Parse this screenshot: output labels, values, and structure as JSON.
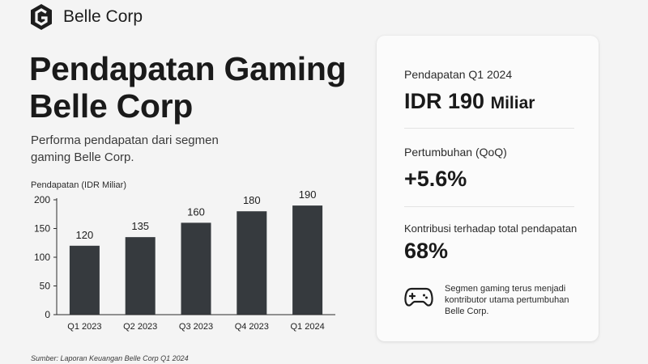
{
  "brand": {
    "name": "Belle Corp",
    "logo_icon": "belle-corp-logo-icon"
  },
  "title_lines": [
    "Pendapatan Gaming",
    "Belle Corp"
  ],
  "subtitle": "Performa pendapatan dari segmen gaming Belle Corp.",
  "source": "Sumber: Laporan Keuangan Belle Corp Q1 2024",
  "chart_data": {
    "type": "bar",
    "title": "",
    "xlabel": "",
    "ylabel": "Pendapatan (IDR Miliar)",
    "categories": [
      "Q1 2023",
      "Q2 2023",
      "Q3 2023",
      "Q4 2023",
      "Q1 2024"
    ],
    "values": [
      120,
      135,
      160,
      180,
      190
    ],
    "ylim": [
      0,
      200
    ],
    "yticks": [
      0,
      50,
      100,
      150,
      200
    ],
    "grid": false,
    "data_labels": true,
    "bar_color": "#363a3e"
  },
  "kpis": [
    {
      "label": "Pendapatan Q1 2024",
      "value": "IDR 190",
      "unit": "Miliar"
    },
    {
      "label": "Pertumbuhan (QoQ)",
      "value": "+5.6%"
    },
    {
      "label": "Kontribusi terhadap total pendapatan",
      "value": "68%"
    }
  ],
  "note": {
    "icon": "gamepad-icon",
    "text": "Segmen gaming terus menjadi kontributor utama pertumbuhan Belle Corp."
  }
}
